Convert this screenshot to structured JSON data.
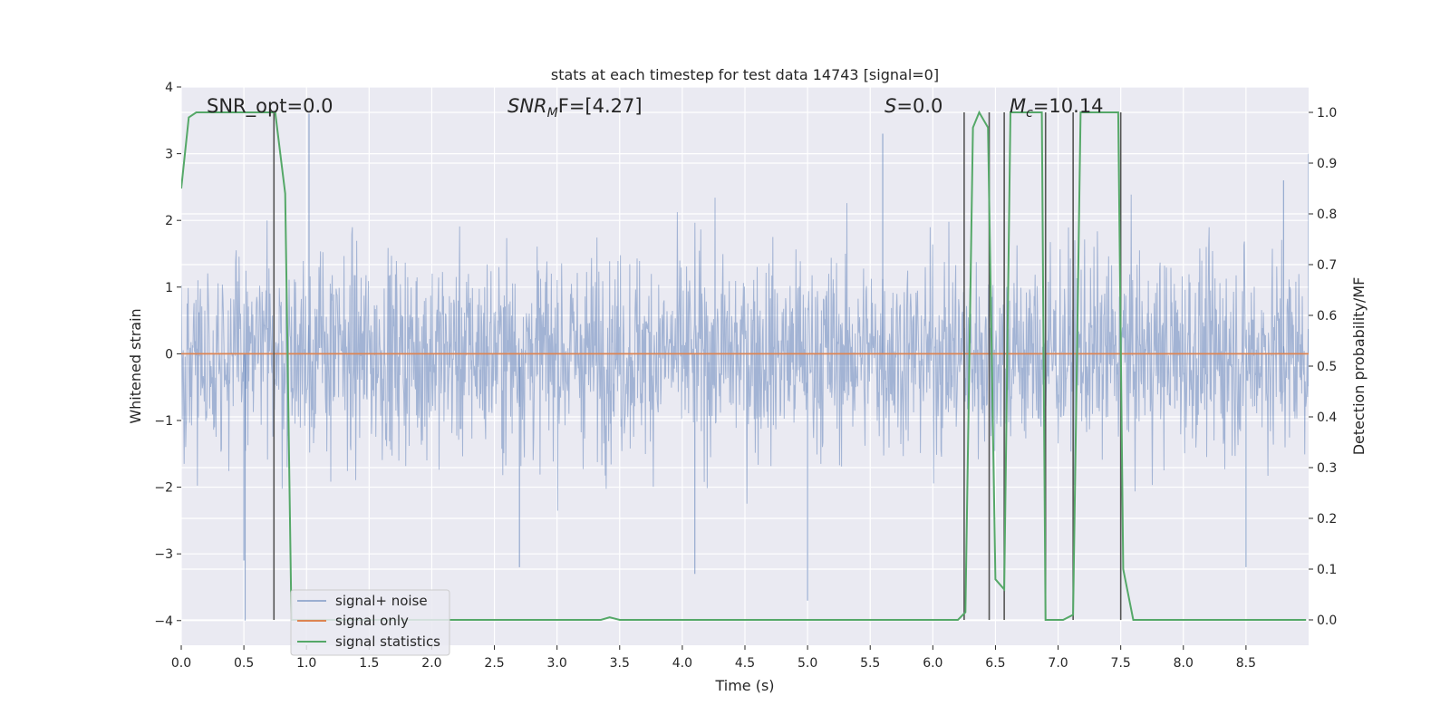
{
  "chart_data": {
    "type": "line",
    "title": "stats at each timestep for test data 14743 [signal=0]",
    "xlabel": "Time (s)",
    "ylabel_left": "Whitened strain",
    "ylabel_right": "Detection probability/MF",
    "xlim": [
      0.0,
      9.0
    ],
    "ylim_left": [
      -4.37,
      4.0
    ],
    "ylim_right": [
      -0.05,
      1.05
    ],
    "x_ticks": [
      "0.0",
      "0.5",
      "1.0",
      "1.5",
      "2.0",
      "2.5",
      "3.0",
      "3.5",
      "4.0",
      "4.5",
      "5.0",
      "5.5",
      "6.0",
      "6.5",
      "7.0",
      "7.5",
      "8.0",
      "8.5"
    ],
    "y_ticks_left": [
      "4",
      "3",
      "2",
      "1",
      "0",
      "−1",
      "−2",
      "−3",
      "−4"
    ],
    "y_ticks_right": [
      "1.0",
      "0.9",
      "0.8",
      "0.7",
      "0.6",
      "0.5",
      "0.4",
      "0.3",
      "0.2",
      "0.1",
      "0.0"
    ],
    "grid": true,
    "legend_position": "lower-left",
    "series": [
      {
        "name": "signal+ noise",
        "color": "#4c72b0",
        "axis": "left",
        "description_values": "dense whitened noise, amplitude mostly within [-2.5, 2.6], occasional spikes to about 3.6 and -4.0",
        "peak_points": [
          [
            0.5,
            -3.1
          ],
          [
            0.51,
            -4.0
          ],
          [
            1.02,
            3.6
          ],
          [
            5.6,
            3.3
          ],
          [
            5.0,
            -3.7
          ],
          [
            2.7,
            -3.2
          ],
          [
            4.1,
            -3.3
          ],
          [
            8.5,
            -3.2
          ],
          [
            8.8,
            2.6
          ],
          [
            9.0,
            3.0
          ]
        ]
      },
      {
        "name": "signal only",
        "color": "#dd8452",
        "axis": "left",
        "x": [
          0.0,
          9.0
        ],
        "y": [
          0.0,
          0.0
        ]
      },
      {
        "name": "signal statistics",
        "color": "#55a868",
        "axis": "right",
        "x": [
          0.0,
          0.06,
          0.12,
          0.2,
          0.72,
          0.75,
          0.83,
          0.88,
          1.0,
          3.35,
          3.42,
          3.5,
          6.2,
          6.26,
          6.32,
          6.37,
          6.44,
          6.5,
          6.57,
          6.62,
          6.68,
          6.87,
          6.9,
          6.96,
          7.04,
          7.12,
          7.18,
          7.3,
          7.48,
          7.52,
          7.6,
          8.98
        ],
        "y": [
          0.85,
          0.99,
          1.0,
          1.0,
          1.0,
          1.0,
          0.84,
          0.0,
          0.0,
          0.0,
          0.005,
          0.0,
          0.0,
          0.015,
          0.97,
          1.0,
          0.97,
          0.08,
          0.06,
          1.0,
          1.0,
          1.0,
          0.0,
          0.0,
          0.0,
          0.01,
          1.0,
          1.0,
          1.0,
          0.1,
          0.0,
          0.0
        ]
      }
    ],
    "vertical_lines": [
      0.74,
      6.25,
      6.45,
      6.57,
      6.9,
      7.12,
      7.5
    ],
    "annotations": [
      {
        "id": "snr-opt",
        "text": "SNR_opt=0.0"
      },
      {
        "id": "snr-mf",
        "text": "SNR_MF=[4.27]",
        "base": "SNR",
        "sub": "M",
        "rest": "F=[4.27]"
      },
      {
        "id": "s-stat",
        "text": "S=0.0",
        "base": "S",
        "rest": "=0.0"
      },
      {
        "id": "mc",
        "text": "M_c=10.14",
        "base": "M",
        "sub": "c",
        "rest": "=10.14"
      }
    ]
  }
}
